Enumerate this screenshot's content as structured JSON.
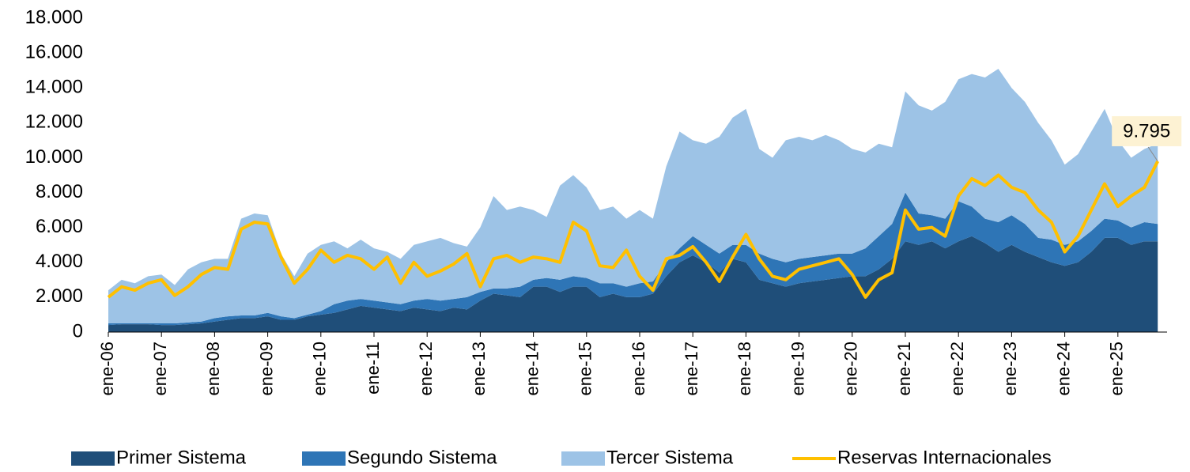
{
  "chart_data": {
    "type": "area",
    "categories": [
      "ene-06",
      null,
      null,
      null,
      "ene-07",
      null,
      null,
      null,
      "ene-08",
      null,
      null,
      null,
      "ene-09",
      null,
      null,
      null,
      "ene-10",
      null,
      null,
      null,
      "ene-11",
      null,
      null,
      null,
      "ene-12",
      null,
      null,
      null,
      "ene-13",
      null,
      null,
      null,
      "ene-14",
      null,
      null,
      null,
      "ene-15",
      null,
      null,
      null,
      "ene-16",
      null,
      null,
      null,
      "ene-17",
      null,
      null,
      null,
      "ene-18",
      null,
      null,
      null,
      "ene-19",
      null,
      null,
      null,
      "ene-20",
      null,
      null,
      null,
      "ene-21",
      null,
      null,
      null,
      "ene-22",
      null,
      null,
      null,
      "ene-23",
      null,
      null,
      null,
      "ene-24",
      null,
      null,
      null,
      "ene-25",
      null,
      null,
      null
    ],
    "ylim": [
      0,
      18000
    ],
    "yticks": [
      0,
      {
        "value": 2000,
        "label": "2.000"
      },
      {
        "value": 4000,
        "label": "4.000"
      },
      {
        "value": 6000,
        "label": "6.000"
      },
      {
        "value": 8000,
        "label": "8.000"
      },
      {
        "value": 10000,
        "label": "10.000"
      },
      {
        "value": 12000,
        "label": "12.000"
      },
      {
        "value": 14000,
        "label": "14.000"
      },
      {
        "value": 16000,
        "label": "16.000"
      },
      {
        "value": 18000,
        "label": "18.000"
      }
    ],
    "stacked": true,
    "legend": "bottom",
    "series": [
      {
        "name": "Primer Sistema",
        "color": "#1f4e79",
        "values": [
          400,
          450,
          450,
          450,
          400,
          400,
          450,
          500,
          600,
          700,
          800,
          800,
          900,
          700,
          700,
          900,
          1000,
          1100,
          1300,
          1500,
          1400,
          1300,
          1200,
          1400,
          1300,
          1200,
          1400,
          1300,
          1800,
          2200,
          2100,
          2000,
          2600,
          2600,
          2300,
          2600,
          2600,
          2000,
          2200,
          2000,
          2000,
          2200,
          3200,
          4000,
          4400,
          4000,
          3400,
          4200,
          4000,
          3000,
          2800,
          2600,
          2800,
          2900,
          3000,
          3100,
          3200,
          3200,
          3600,
          4200,
          5200,
          5000,
          5200,
          4800,
          5200,
          5500,
          5100,
          4600,
          5000,
          4600,
          4300,
          4000,
          3800,
          4000,
          4600,
          5400,
          5400,
          5000,
          5200,
          5200
        ]
      },
      {
        "name": "Segundo Sistema",
        "color": "#2e75b6",
        "values": [
          100,
          50,
          50,
          50,
          100,
          100,
          100,
          100,
          200,
          200,
          150,
          150,
          200,
          200,
          100,
          100,
          200,
          500,
          500,
          400,
          400,
          400,
          400,
          400,
          600,
          600,
          500,
          700,
          500,
          300,
          400,
          600,
          400,
          500,
          700,
          600,
          500,
          800,
          600,
          600,
          800,
          700,
          800,
          800,
          1100,
          1000,
          1100,
          800,
          1000,
          1500,
          1400,
          1400,
          1400,
          1400,
          1400,
          1400,
          1300,
          1600,
          1900,
          2000,
          2800,
          1800,
          1500,
          1700,
          2300,
          1700,
          1400,
          1700,
          1700,
          1600,
          1100,
          1300,
          1200,
          1200,
          1200,
          1100,
          1000,
          1000,
          1100,
          1000
        ]
      },
      {
        "name": "Tercer Sistema",
        "color": "#9dc3e6",
        "values": [
          1900,
          2500,
          2300,
          2700,
          2800,
          2200,
          3050,
          3400,
          3400,
          3300,
          5550,
          5850,
          5600,
          3600,
          2400,
          3500,
          3800,
          3600,
          3000,
          3400,
          3000,
          2900,
          2600,
          3200,
          3300,
          3600,
          3200,
          2900,
          3700,
          5300,
          4500,
          4600,
          4000,
          3500,
          5400,
          5800,
          5200,
          4200,
          4400,
          3900,
          4200,
          3600,
          5500,
          6700,
          5500,
          5800,
          6700,
          7300,
          7800,
          6000,
          5800,
          7000,
          7000,
          6700,
          6900,
          6500,
          6000,
          5500,
          5300,
          4400,
          5800,
          6200,
          6000,
          6700,
          7000,
          7600,
          8100,
          8800,
          7300,
          7000,
          6600,
          5700,
          4600,
          5000,
          5700,
          6300,
          4600,
          4000,
          4200,
          4600
        ]
      },
      {
        "name": "Reservas Internacionales",
        "color": "#ffc000",
        "type": "line",
        "axis": "y",
        "values": [
          2000,
          2600,
          2400,
          2800,
          3000,
          2100,
          2600,
          3300,
          3700,
          3600,
          5900,
          6300,
          6200,
          4300,
          2800,
          3600,
          4700,
          4000,
          4400,
          4200,
          3600,
          4300,
          2800,
          4000,
          3200,
          3500,
          3900,
          4500,
          2600,
          4200,
          4400,
          4000,
          4300,
          4200,
          4000,
          6300,
          5800,
          3800,
          3700,
          4700,
          3200,
          2400,
          4200,
          4400,
          4900,
          4000,
          2900,
          4300,
          5600,
          4200,
          3200,
          3000,
          3600,
          3800,
          4000,
          4200,
          3300,
          2000,
          3000,
          3400,
          7000,
          5900,
          6000,
          5500,
          7800,
          8800,
          8400,
          9000,
          8300,
          8000,
          7000,
          6300,
          4600,
          5500,
          7000,
          8500,
          7200,
          7800,
          8300,
          9795
        ],
        "value_labels": [
          null,
          null,
          null,
          null,
          null,
          null,
          null,
          null,
          null,
          null,
          null,
          null,
          null,
          null,
          null,
          null,
          null,
          null,
          null,
          null,
          null,
          null,
          null,
          null,
          null,
          null,
          null,
          null,
          null,
          null,
          null,
          null,
          null,
          null,
          null,
          null,
          null,
          null,
          null,
          null,
          null,
          null,
          null,
          null,
          null,
          null,
          null,
          null,
          null,
          null,
          null,
          null,
          null,
          null,
          null,
          null,
          null,
          null,
          null,
          null,
          null,
          null,
          null,
          null,
          null,
          null,
          null,
          null,
          null,
          null,
          null,
          null,
          null,
          null,
          null,
          null,
          null,
          null,
          null,
          "9.795"
        ]
      }
    ]
  }
}
